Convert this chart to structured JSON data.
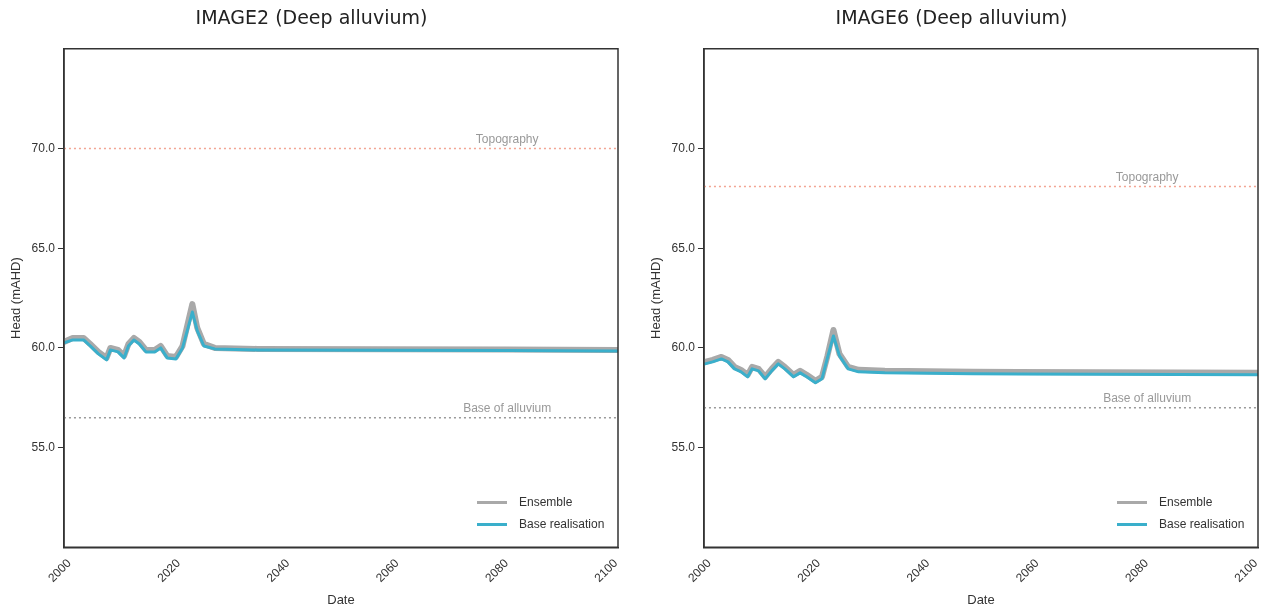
{
  "chart_data": [
    {
      "type": "line",
      "title": "IMAGE2 (Deep alluvium)",
      "xlabel": "Date",
      "ylabel": "Head (mAHD)",
      "xlim": [
        1999,
        2100.4
      ],
      "xticks": [
        2000,
        2020,
        2040,
        2060,
        2080,
        2100
      ],
      "ylim": [
        50,
        75
      ],
      "yticks": [
        {
          "value": 55,
          "label": "55.0"
        },
        {
          "value": 60,
          "label": "60.0"
        },
        {
          "value": 65,
          "label": "65.0"
        },
        {
          "value": 70,
          "label": "70.0"
        }
      ],
      "legend": "bottom right",
      "ref_lines": [
        {
          "axis": "y",
          "value": 70,
          "label": "Topography",
          "color": "#f2a593",
          "line_style": "dotted"
        },
        {
          "axis": "y",
          "value": 56.5,
          "label": "Base of alluvium",
          "color": "#9a9a9a",
          "line_style": "dotted"
        }
      ],
      "series": [
        {
          "name": "Ensemble",
          "color": "#a9a9a9",
          "x": [
            1999,
            2000.6,
            2002.6,
            2003.8,
            2005.3,
            2006.8,
            2007.5,
            2008.9,
            2010,
            2010.8,
            2011.8,
            2012.8,
            2014,
            2015.6,
            2016.7,
            2017.9,
            2019.5,
            2020.7,
            2022.5,
            2023.4,
            2024.6,
            2026.6,
            2034.4,
            2100.4
          ],
          "values": [
            60.3,
            60.5,
            60.5,
            60.2,
            59.8,
            59.5,
            60,
            59.9,
            59.6,
            60.2,
            60.5,
            60.3,
            59.9,
            59.9,
            60.1,
            59.6,
            59.55,
            60.1,
            62.2,
            61,
            60.2,
            60,
            59.95,
            59.9
          ]
        },
        {
          "name": "Base realisation",
          "color": "#3aafcb",
          "x": [
            1999,
            2000.6,
            2002.6,
            2003.8,
            2005.3,
            2006.8,
            2007.5,
            2008.9,
            2010,
            2010.8,
            2011.8,
            2012.8,
            2014,
            2015.6,
            2016.7,
            2017.9,
            2019.5,
            2020.7,
            2022.5,
            2023.4,
            2024.6,
            2026.6,
            2034.4,
            2100.4
          ],
          "values": [
            60.25,
            60.4,
            60.4,
            60.1,
            59.7,
            59.4,
            59.9,
            59.8,
            59.5,
            60.1,
            60.4,
            60.2,
            59.8,
            59.8,
            60,
            59.5,
            59.45,
            60,
            61.8,
            60.85,
            60.1,
            59.95,
            59.9,
            59.85
          ]
        }
      ]
    },
    {
      "type": "line",
      "title": "IMAGE6 (Deep alluvium)",
      "xlabel": "Date",
      "ylabel": "Head (mAHD)",
      "xlim": [
        1999,
        2100.4
      ],
      "xticks": [
        2000,
        2020,
        2040,
        2060,
        2080,
        2100
      ],
      "ylim": [
        50,
        75
      ],
      "yticks": [
        {
          "value": 55,
          "label": "55.0"
        },
        {
          "value": 60,
          "label": "60.0"
        },
        {
          "value": 65,
          "label": "65.0"
        },
        {
          "value": 70,
          "label": "70.0"
        }
      ],
      "legend": "bottom right",
      "ref_lines": [
        {
          "axis": "y",
          "value": 68.1,
          "label": "Topography",
          "color": "#f2a593",
          "line_style": "dotted"
        },
        {
          "axis": "y",
          "value": 57,
          "label": "Base of alluvium",
          "color": "#9a9a9a",
          "line_style": "dotted"
        }
      ],
      "series": [
        {
          "name": "Ensemble",
          "color": "#a9a9a9",
          "x": [
            1999.2,
            2000.6,
            2002.2,
            2003.4,
            2004.6,
            2005.8,
            2007,
            2007.8,
            2009,
            2010.2,
            2011.4,
            2012.6,
            2013.8,
            2015.4,
            2016.6,
            2017.8,
            2019.4,
            2020.6,
            2021.6,
            2022.7,
            2023.8,
            2025.4,
            2027.3,
            2032.1,
            2048.1,
            2100.4
          ],
          "values": [
            59.3,
            59.4,
            59.55,
            59.4,
            59.05,
            58.9,
            58.65,
            59.05,
            58.95,
            58.55,
            58.95,
            59.3,
            59.05,
            58.65,
            58.85,
            58.65,
            58.35,
            58.55,
            59.6,
            60.9,
            59.7,
            59.05,
            58.9,
            58.85,
            58.8,
            58.75
          ]
        },
        {
          "name": "Base realisation",
          "color": "#3aafcb",
          "x": [
            1999.2,
            2000.6,
            2002.2,
            2003.4,
            2004.6,
            2005.8,
            2007,
            2007.8,
            2009,
            2010.2,
            2011.4,
            2012.6,
            2013.8,
            2015.4,
            2016.6,
            2017.8,
            2019.4,
            2020.6,
            2021.6,
            2022.7,
            2023.8,
            2025.4,
            2027.3,
            2032.1,
            2048.1,
            2100.4
          ],
          "values": [
            59.2,
            59.3,
            59.45,
            59.3,
            58.95,
            58.8,
            58.55,
            58.95,
            58.85,
            58.45,
            58.85,
            59.2,
            58.95,
            58.55,
            58.75,
            58.55,
            58.25,
            58.45,
            59.5,
            60.6,
            59.6,
            58.95,
            58.8,
            58.75,
            58.7,
            58.65
          ]
        }
      ]
    }
  ]
}
